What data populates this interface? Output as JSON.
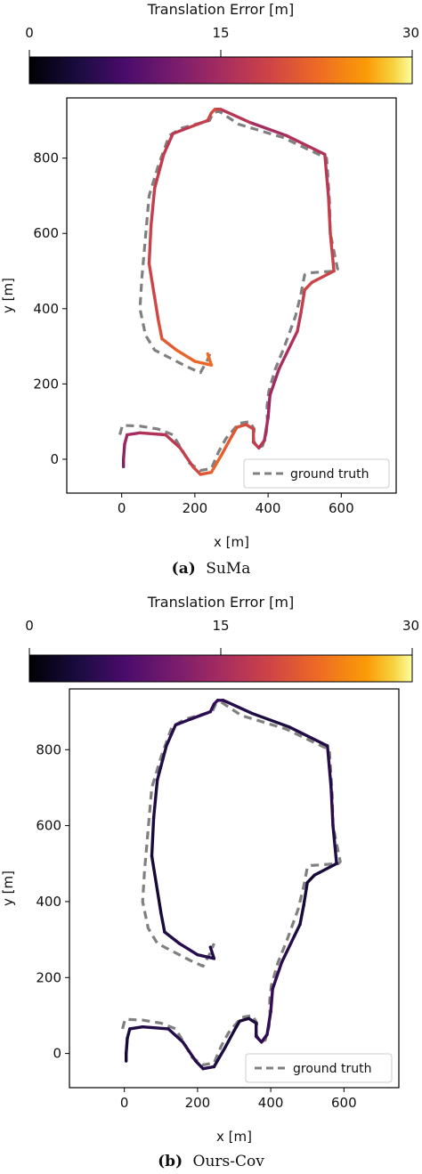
{
  "chart_data": [
    {
      "type": "line",
      "panel_label": "(a)",
      "caption": "SuMa",
      "colorbar": {
        "title": "Translation Error [m]",
        "ticks": [
          "0",
          "15",
          "30"
        ],
        "range": [
          0,
          30
        ],
        "colormap": "inferno"
      },
      "xlabel": "x [m]",
      "ylabel": "y [m]",
      "xlim": [
        -150,
        750
      ],
      "ylim": [
        -90,
        960
      ],
      "xticks": [
        0,
        200,
        400,
        600
      ],
      "yticks": [
        0,
        200,
        400,
        600,
        800
      ],
      "legend": {
        "label": "ground truth",
        "placement": "lower-right"
      },
      "series": [
        {
          "role": "ground_truth",
          "style": "dashed",
          "color": "#808080",
          "points": [
            [
              -5,
              65
            ],
            [
              2,
              90
            ],
            [
              50,
              88
            ],
            [
              100,
              80
            ],
            [
              140,
              65
            ],
            [
              165,
              25
            ],
            [
              185,
              -10
            ],
            [
              215,
              -30
            ],
            [
              245,
              -25
            ],
            [
              265,
              20
            ],
            [
              285,
              55
            ],
            [
              320,
              95
            ],
            [
              350,
              100
            ],
            [
              362,
              80
            ],
            [
              360,
              50
            ],
            [
              370,
              32
            ],
            [
              385,
              35
            ],
            [
              395,
              70
            ],
            [
              398,
              100
            ],
            [
              397,
              140
            ],
            [
              402,
              180
            ],
            [
              420,
              240
            ],
            [
              445,
              300
            ],
            [
              475,
              380
            ],
            [
              490,
              440
            ],
            [
              500,
              490
            ],
            [
              510,
              495
            ],
            [
              585,
              500
            ],
            [
              590,
              505
            ],
            [
              570,
              600
            ],
            [
              568,
              680
            ],
            [
              560,
              800
            ],
            [
              440,
              855
            ],
            [
              320,
              890
            ],
            [
              265,
              925
            ],
            [
              250,
              920
            ],
            [
              240,
              900
            ],
            [
              165,
              880
            ],
            [
              130,
              860
            ],
            [
              100,
              780
            ],
            [
              75,
              700
            ],
            [
              55,
              480
            ],
            [
              50,
              400
            ],
            [
              65,
              330
            ],
            [
              90,
              290
            ],
            [
              140,
              265
            ],
            [
              180,
              245
            ],
            [
              215,
              230
            ],
            [
              235,
              265
            ],
            [
              245,
              290
            ]
          ]
        },
        {
          "role": "estimate",
          "style": "solid",
          "errors": [
            12,
            15,
            18,
            22,
            20,
            18,
            14,
            16,
            19,
            18,
            15,
            20,
            17,
            18,
            19,
            22,
            23
          ],
          "points": [
            [
              5,
              -20
            ],
            [
              5,
              0
            ],
            [
              8,
              40
            ],
            [
              15,
              65
            ],
            [
              50,
              70
            ],
            [
              120,
              65
            ],
            [
              160,
              30
            ],
            [
              195,
              -20
            ],
            [
              215,
              -40
            ],
            [
              245,
              -35
            ],
            [
              275,
              15
            ],
            [
              300,
              60
            ],
            [
              315,
              85
            ],
            [
              340,
              92
            ],
            [
              360,
              80
            ],
            [
              360,
              45
            ],
            [
              375,
              30
            ],
            [
              390,
              50
            ],
            [
              400,
              110
            ],
            [
              405,
              170
            ],
            [
              430,
              240
            ],
            [
              465,
              310
            ],
            [
              480,
              340
            ],
            [
              490,
              390
            ],
            [
              500,
              450
            ],
            [
              520,
              470
            ],
            [
              580,
              500
            ],
            [
              570,
              600
            ],
            [
              565,
              700
            ],
            [
              555,
              810
            ],
            [
              450,
              860
            ],
            [
              350,
              895
            ],
            [
              270,
              930
            ],
            [
              255,
              930
            ],
            [
              245,
              920
            ],
            [
              235,
              900
            ],
            [
              180,
              880
            ],
            [
              140,
              865
            ],
            [
              115,
              810
            ],
            [
              90,
              720
            ],
            [
              80,
              620
            ],
            [
              75,
              520
            ],
            [
              90,
              430
            ],
            [
              100,
              370
            ],
            [
              110,
              320
            ],
            [
              150,
              290
            ],
            [
              200,
              260
            ],
            [
              245,
              250
            ],
            [
              235,
              280
            ]
          ]
        }
      ]
    },
    {
      "type": "line",
      "panel_label": "(b)",
      "caption": "Ours-Cov",
      "colorbar": {
        "title": "Translation Error [m]",
        "ticks": [
          "0",
          "15",
          "30"
        ],
        "range": [
          0,
          30
        ],
        "colormap": "inferno"
      },
      "xlabel": "x [m]",
      "ylabel": "y [m]",
      "xlim": [
        -150,
        750
      ],
      "ylim": [
        -90,
        960
      ],
      "xticks": [
        0,
        200,
        400,
        600
      ],
      "yticks": [
        0,
        200,
        400,
        600,
        800
      ],
      "legend": {
        "label": "ground truth",
        "placement": "lower-right"
      },
      "series": [
        {
          "role": "ground_truth",
          "style": "dashed",
          "color": "#808080",
          "points": [
            [
              -5,
              65
            ],
            [
              2,
              90
            ],
            [
              50,
              88
            ],
            [
              100,
              80
            ],
            [
              140,
              65
            ],
            [
              165,
              25
            ],
            [
              185,
              -10
            ],
            [
              215,
              -30
            ],
            [
              245,
              -25
            ],
            [
              265,
              20
            ],
            [
              285,
              55
            ],
            [
              320,
              95
            ],
            [
              350,
              100
            ],
            [
              362,
              80
            ],
            [
              360,
              50
            ],
            [
              370,
              32
            ],
            [
              385,
              35
            ],
            [
              395,
              70
            ],
            [
              398,
              100
            ],
            [
              397,
              140
            ],
            [
              402,
              180
            ],
            [
              420,
              240
            ],
            [
              445,
              300
            ],
            [
              475,
              380
            ],
            [
              490,
              440
            ],
            [
              500,
              490
            ],
            [
              510,
              495
            ],
            [
              585,
              500
            ],
            [
              590,
              505
            ],
            [
              570,
              600
            ],
            [
              568,
              680
            ],
            [
              560,
              800
            ],
            [
              440,
              855
            ],
            [
              320,
              890
            ],
            [
              265,
              925
            ],
            [
              250,
              920
            ],
            [
              240,
              900
            ],
            [
              165,
              880
            ],
            [
              130,
              860
            ],
            [
              100,
              780
            ],
            [
              75,
              700
            ],
            [
              55,
              480
            ],
            [
              50,
              400
            ],
            [
              65,
              330
            ],
            [
              90,
              290
            ],
            [
              140,
              265
            ],
            [
              180,
              245
            ],
            [
              215,
              230
            ],
            [
              235,
              265
            ],
            [
              245,
              290
            ]
          ]
        },
        {
          "role": "estimate",
          "style": "solid",
          "errors": [
            3,
            4,
            5,
            4,
            3,
            5,
            6,
            4,
            3,
            5,
            4,
            6,
            5,
            4,
            3,
            5,
            4
          ],
          "points": [
            [
              5,
              -20
            ],
            [
              5,
              0
            ],
            [
              8,
              40
            ],
            [
              15,
              65
            ],
            [
              50,
              70
            ],
            [
              120,
              65
            ],
            [
              160,
              30
            ],
            [
              195,
              -20
            ],
            [
              215,
              -40
            ],
            [
              245,
              -35
            ],
            [
              275,
              15
            ],
            [
              300,
              60
            ],
            [
              315,
              85
            ],
            [
              340,
              92
            ],
            [
              360,
              80
            ],
            [
              360,
              45
            ],
            [
              375,
              30
            ],
            [
              390,
              50
            ],
            [
              400,
              110
            ],
            [
              405,
              170
            ],
            [
              430,
              240
            ],
            [
              465,
              310
            ],
            [
              480,
              340
            ],
            [
              490,
              390
            ],
            [
              500,
              450
            ],
            [
              520,
              470
            ],
            [
              580,
              500
            ],
            [
              570,
              600
            ],
            [
              565,
              700
            ],
            [
              555,
              810
            ],
            [
              450,
              860
            ],
            [
              350,
              895
            ],
            [
              270,
              930
            ],
            [
              255,
              930
            ],
            [
              245,
              920
            ],
            [
              235,
              900
            ],
            [
              180,
              880
            ],
            [
              140,
              865
            ],
            [
              115,
              810
            ],
            [
              90,
              720
            ],
            [
              80,
              620
            ],
            [
              75,
              520
            ],
            [
              90,
              430
            ],
            [
              100,
              370
            ],
            [
              110,
              320
            ],
            [
              150,
              290
            ],
            [
              200,
              260
            ],
            [
              245,
              250
            ],
            [
              235,
              280
            ]
          ]
        }
      ]
    }
  ]
}
